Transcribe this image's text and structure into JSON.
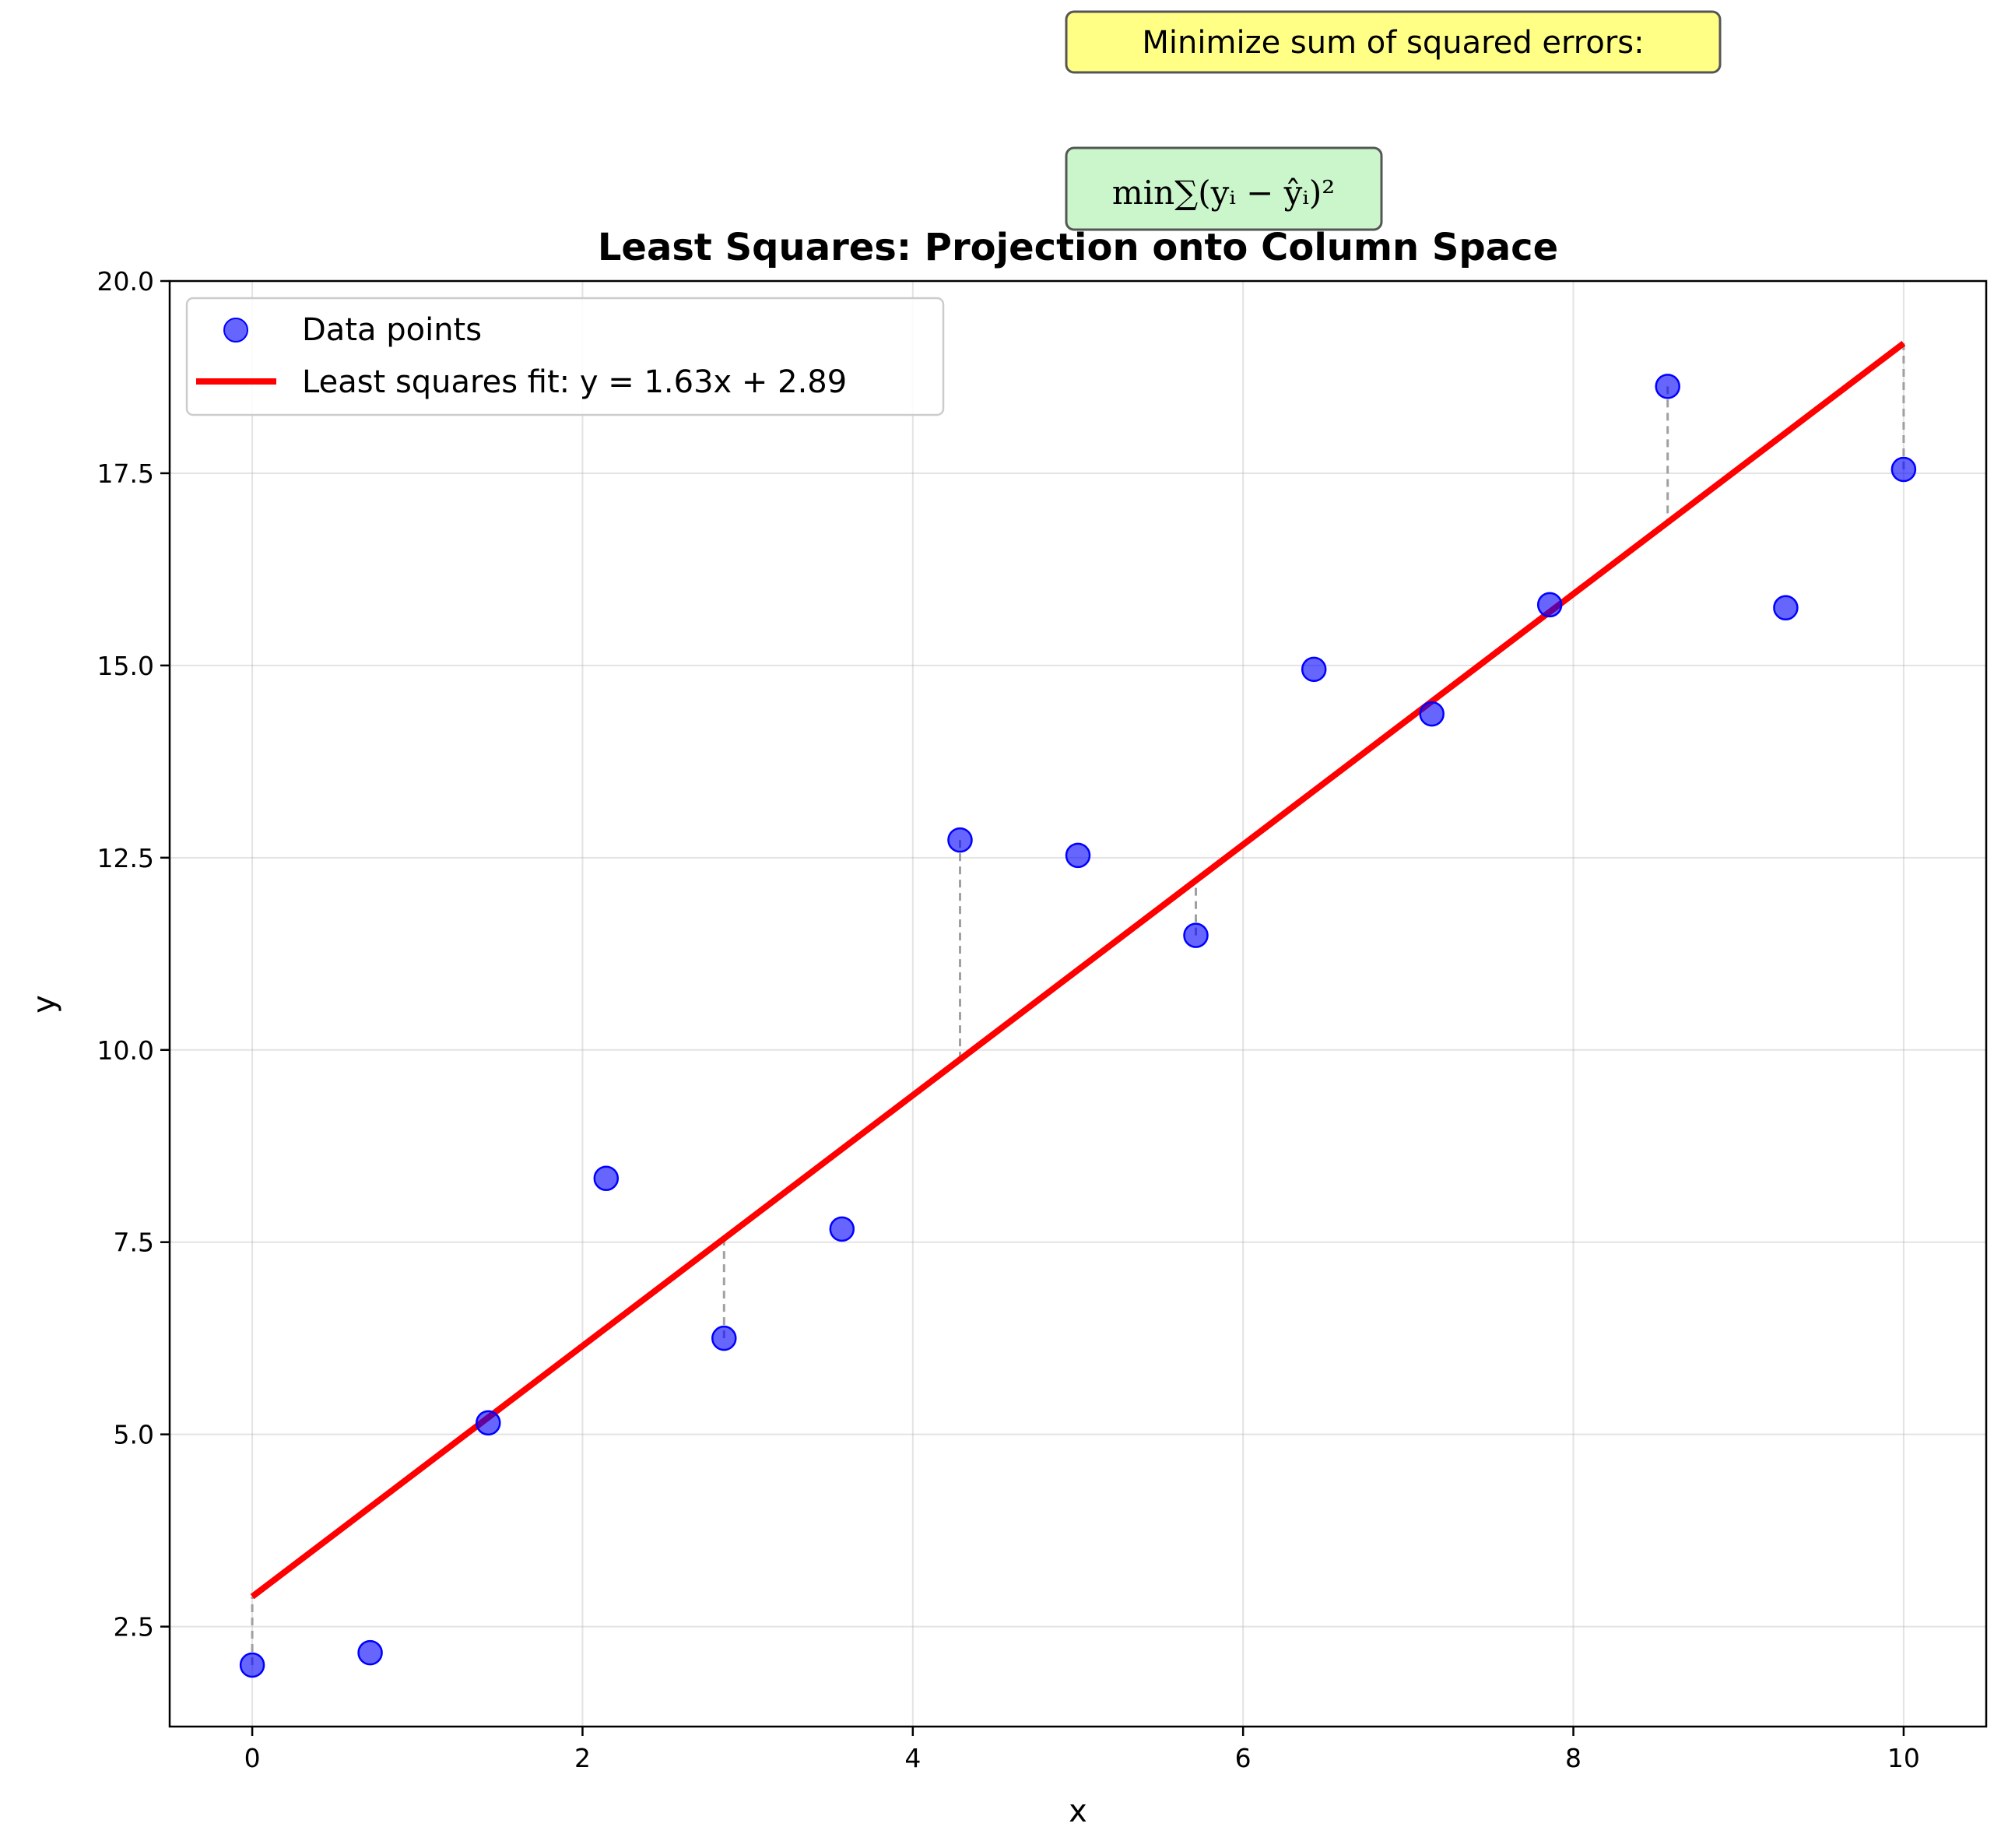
{
  "chart_data": {
    "type": "scatter",
    "title": "Least Squares: Projection onto Column Space",
    "xlabel": "x",
    "ylabel": "y",
    "xlim": [
      -0.5,
      10.5
    ],
    "ylim": [
      1.2,
      20.0
    ],
    "xticks": [
      0,
      2,
      4,
      6,
      8,
      10
    ],
    "xtick_labels": [
      "0",
      "2",
      "4",
      "6",
      "8",
      "10"
    ],
    "yticks": [
      2.5,
      5.0,
      7.5,
      10.0,
      12.5,
      15.0,
      17.5,
      20.0
    ],
    "ytick_labels": [
      "2.5",
      "5.0",
      "7.5",
      "10.0",
      "12.5",
      "15.0",
      "17.5",
      "20.0"
    ],
    "grid": true,
    "legend_position": "top-left",
    "series": [
      {
        "name": "Data points",
        "type": "scatter",
        "color": "#0000ff",
        "x": [
          0.0,
          0.714,
          1.429,
          2.143,
          2.857,
          3.571,
          4.286,
          5.0,
          5.714,
          6.429,
          7.143,
          7.857,
          8.571,
          9.286,
          10.0
        ],
        "y": [
          2.0,
          2.16,
          5.15,
          8.33,
          6.25,
          7.67,
          12.73,
          12.53,
          11.49,
          14.95,
          14.37,
          15.79,
          18.63,
          15.75,
          17.55
        ]
      },
      {
        "name": "Least squares fit: y = 1.63x + 2.89",
        "type": "line",
        "color": "#ff0000",
        "slope": 1.63,
        "intercept": 2.89,
        "x_range": [
          0,
          10
        ]
      }
    ],
    "residual_x": [
      0.0,
      2.857,
      4.286,
      5.714,
      8.571,
      10.0
    ],
    "annotations": [
      {
        "text": "Minimize sum of squared errors:",
        "background": "#ffff80"
      },
      {
        "text": "min∑(yᵢ − ŷᵢ)²",
        "background": "#c8f5c8"
      }
    ]
  }
}
